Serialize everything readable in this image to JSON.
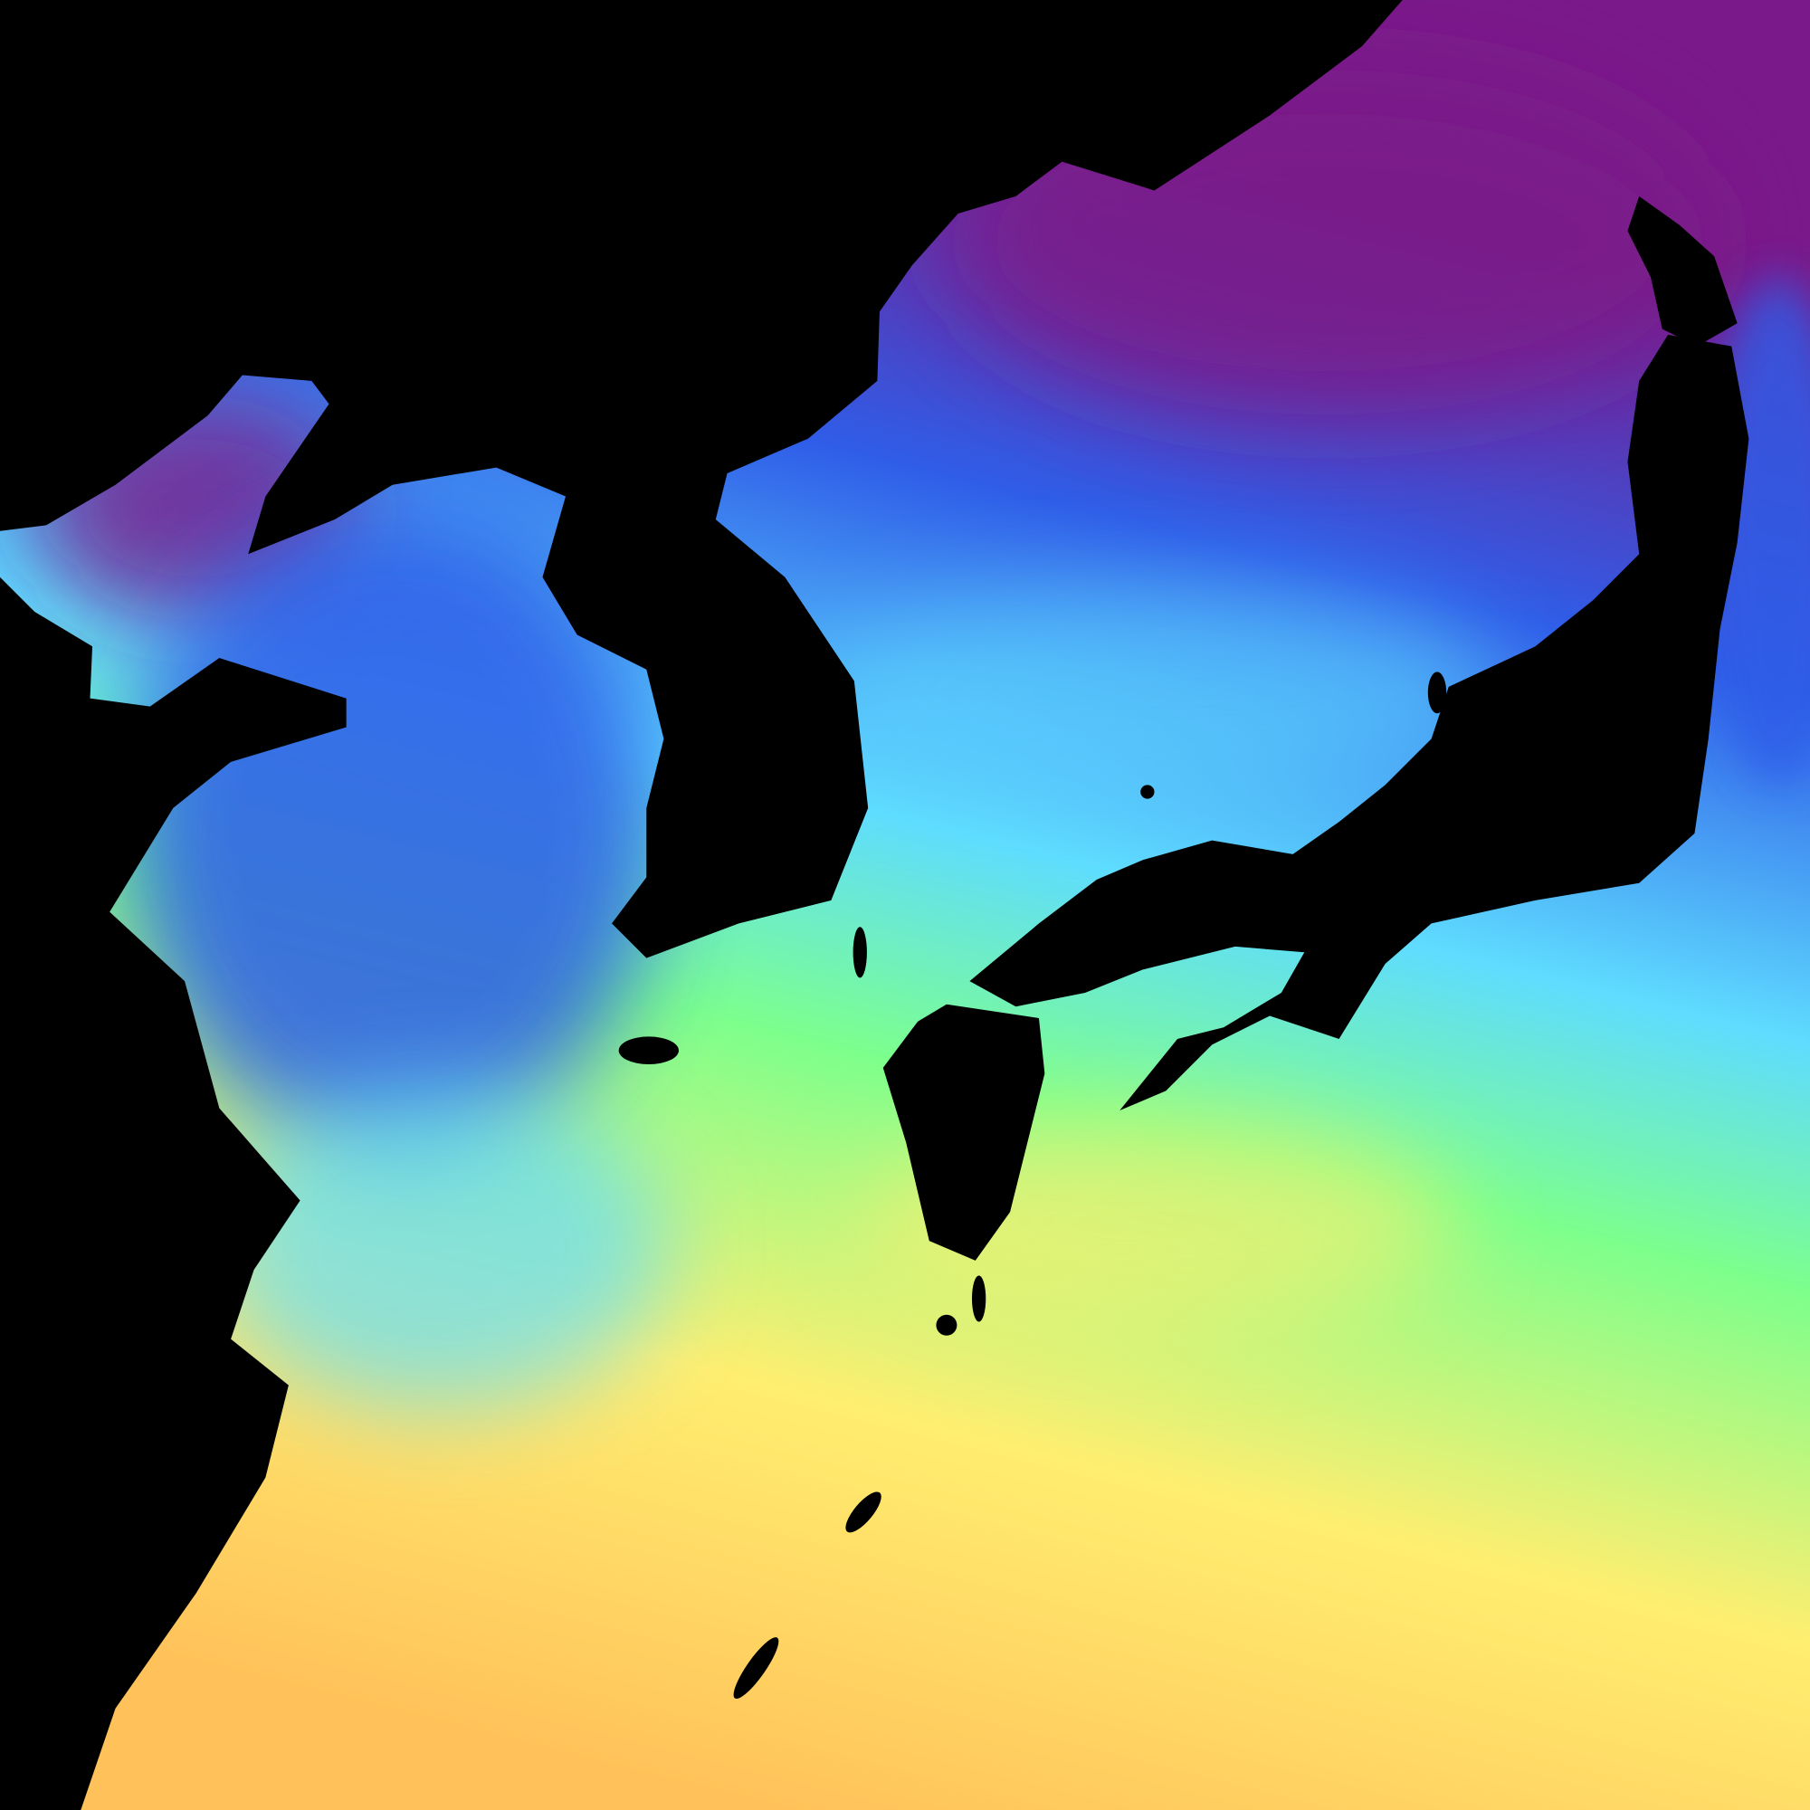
{
  "map": {
    "kind": "sea-surface-temperature-false-color",
    "colors": {
      "land": "#000000",
      "coldest": "#7a1a8a",
      "cold": "#2f5de8",
      "cool": "#5fdcff",
      "mild": "#7dff8c",
      "warm": "#ffee70",
      "warmest": "#ffc25a"
    }
  }
}
